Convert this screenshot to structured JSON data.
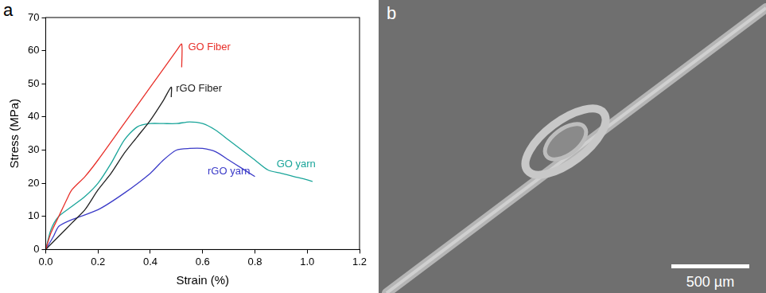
{
  "chart_data": {
    "type": "line",
    "panel_label": "a",
    "x_label": "Strain (%)",
    "y_label": "Stress (MPa)",
    "xlim": [
      0,
      1.2
    ],
    "xticks": [
      {
        "value": 0,
        "label": "0.0"
      },
      0.2,
      0.4,
      0.6,
      0.8,
      {
        "value": 1,
        "label": "1.0"
      },
      1.2
    ],
    "ylim": [
      0,
      70
    ],
    "yticks": [
      0,
      10,
      20,
      30,
      40,
      50,
      60,
      70
    ],
    "grid": false,
    "series": [
      {
        "name": "GO Fiber",
        "color": "#e8302a",
        "x": [
          0,
          0.02,
          0.05,
          0.08,
          0.1,
          0.15,
          0.2,
          0.3,
          0.4,
          0.5,
          0.52,
          0.52
        ],
        "values": [
          0,
          5,
          10,
          15,
          18,
          22,
          27,
          38,
          49,
          60,
          62,
          55
        ]
      },
      {
        "name": "rGO Fiber",
        "color": "#222222",
        "x": [
          0,
          0.05,
          0.1,
          0.15,
          0.2,
          0.25,
          0.3,
          0.35,
          0.4,
          0.45,
          0.48,
          0.48
        ],
        "values": [
          0,
          4,
          8,
          12,
          18,
          23,
          29,
          34,
          39,
          45,
          49,
          46
        ]
      },
      {
        "name": "GO yarn",
        "color": "#1aa59a",
        "x": [
          0,
          0.02,
          0.05,
          0.1,
          0.15,
          0.2,
          0.25,
          0.3,
          0.35,
          0.4,
          0.45,
          0.5,
          0.55,
          0.6,
          0.65,
          0.7,
          0.75,
          0.8,
          0.85,
          0.9,
          0.95,
          1.0,
          1.02
        ],
        "values": [
          0,
          6,
          10,
          13,
          16,
          20,
          26,
          33,
          37,
          38,
          38,
          38,
          38.5,
          38,
          36,
          33,
          30,
          27,
          24,
          23,
          22,
          21,
          20.5
        ]
      },
      {
        "name": "rGO yarn",
        "color": "#3b3bc8",
        "x": [
          0,
          0.03,
          0.05,
          0.1,
          0.2,
          0.3,
          0.4,
          0.45,
          0.5,
          0.55,
          0.6,
          0.65,
          0.7,
          0.75,
          0.8
        ],
        "values": [
          0,
          4,
          7,
          9,
          12,
          17,
          23,
          27,
          30,
          30.5,
          30.5,
          29.5,
          27,
          24.5,
          22
        ]
      }
    ]
  },
  "image_panel": {
    "panel_label": "b",
    "scale_bar_label": "500 µm"
  }
}
